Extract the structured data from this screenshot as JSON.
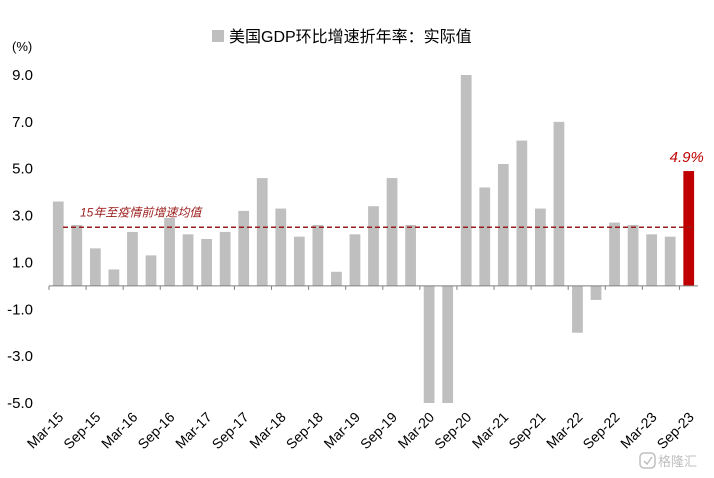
{
  "chart_data": {
    "type": "bar",
    "title": "美国GDP环比增速折年率：实际值",
    "ylabel": "(%)",
    "ylim": [
      -5.0,
      10.0
    ],
    "yticks": [
      "9.0",
      "7.0",
      "5.0",
      "3.0",
      "1.0",
      "-1.0",
      "-3.0",
      "-5.0"
    ],
    "ytick_values": [
      9,
      7,
      5,
      3,
      1,
      -1,
      -3,
      -5
    ],
    "categories": [
      "Q1-15",
      "Q2-15",
      "Q3-15",
      "Q4-15",
      "Q1-16",
      "Q2-16",
      "Q3-16",
      "Q4-16",
      "Q1-17",
      "Q2-17",
      "Q3-17",
      "Q4-17",
      "Q1-18",
      "Q2-18",
      "Q3-18",
      "Q4-18",
      "Q1-19",
      "Q2-19",
      "Q3-19",
      "Q4-19",
      "Q1-20",
      "Q2-20",
      "Q3-20",
      "Q4-20",
      "Q1-21",
      "Q2-21",
      "Q3-21",
      "Q4-21",
      "Q1-22",
      "Q2-22",
      "Q3-22",
      "Q4-22",
      "Q1-23",
      "Q2-23",
      "Q3-23"
    ],
    "x_tick_labels": [
      "Mar-15",
      "Sep-15",
      "Mar-16",
      "Sep-16",
      "Mar-17",
      "Sep-17",
      "Mar-18",
      "Sep-18",
      "Mar-19",
      "Sep-19",
      "Mar-20",
      "Sep-20",
      "Mar-21",
      "Sep-21",
      "Mar-22",
      "Sep-22",
      "Mar-23",
      "Sep-23"
    ],
    "series": [
      {
        "name": "美国GDP环比增速折年率：实际值",
        "values": [
          3.6,
          2.6,
          1.6,
          0.7,
          2.3,
          1.3,
          2.9,
          2.2,
          2.0,
          2.3,
          3.2,
          4.6,
          3.3,
          2.1,
          2.6,
          0.6,
          2.2,
          3.4,
          4.6,
          2.6,
          -5.0,
          -5.0,
          9.0,
          4.2,
          5.2,
          6.2,
          3.3,
          7.0,
          -2.0,
          -0.6,
          2.7,
          2.6,
          2.2,
          2.1,
          4.9
        ]
      }
    ],
    "reference_line": {
      "label": "15年至疫情前增速均值",
      "value": 2.5,
      "style": "dashed"
    },
    "last_value_label": "4.9%",
    "colors": {
      "bar": "#bfbfbf",
      "highlight_bar": "#c00000",
      "reference_line": "#9b1c1c"
    },
    "grid": false,
    "legend_position": "top-center"
  },
  "watermark": "格隆汇"
}
